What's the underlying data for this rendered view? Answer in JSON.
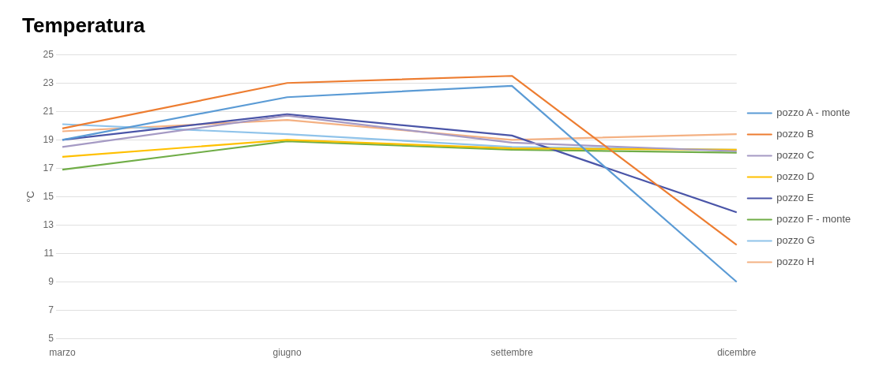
{
  "chart_data": {
    "type": "line",
    "title": "Temperatura",
    "ylabel": "°C",
    "categories": [
      "marzo",
      "giugno",
      "settembre",
      "dicembre"
    ],
    "series": [
      {
        "name": "pozzo A - monte",
        "color": "#5b9bd5",
        "values": [
          19.0,
          22.0,
          22.8,
          9.0
        ]
      },
      {
        "name": "pozzo B",
        "color": "#ed7d31",
        "values": [
          19.8,
          23.0,
          23.5,
          11.6
        ]
      },
      {
        "name": "pozzo C",
        "color": "#a59ac4",
        "values": [
          18.5,
          20.7,
          18.8,
          18.2
        ]
      },
      {
        "name": "pozzo D",
        "color": "#ffc000",
        "values": [
          17.8,
          19.0,
          18.4,
          18.3
        ]
      },
      {
        "name": "pozzo E",
        "color": "#4a55a8",
        "values": [
          19.0,
          20.8,
          19.3,
          13.9
        ]
      },
      {
        "name": "pozzo F - monte",
        "color": "#70ad47",
        "values": [
          16.9,
          18.9,
          18.3,
          18.1
        ]
      },
      {
        "name": "pozzo G",
        "color": "#8fc3ea",
        "values": [
          20.1,
          19.4,
          18.5,
          18.3
        ]
      },
      {
        "name": "pozzo H",
        "color": "#f4b183",
        "values": [
          19.6,
          20.4,
          19.0,
          19.4
        ]
      }
    ],
    "ylim": [
      5,
      25
    ],
    "yticks": [
      5,
      7,
      9,
      11,
      13,
      15,
      17,
      19,
      21,
      23,
      25
    ],
    "grid": "y",
    "legend": "right",
    "marker": "none",
    "line_style": "solid"
  }
}
